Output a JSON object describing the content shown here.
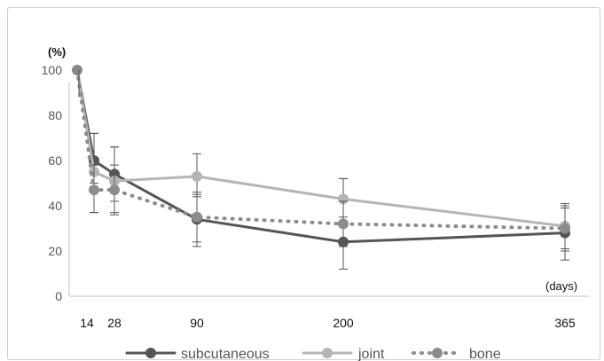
{
  "chart_data": {
    "type": "line",
    "title": "",
    "y_unit_label": "(%)",
    "x_unit_label": "(days)",
    "x": [
      14,
      28,
      90,
      200,
      365
    ],
    "x_tick_labels": [
      "14",
      "28",
      "90",
      "200",
      "365"
    ],
    "y_ticks": [
      0,
      20,
      40,
      60,
      80,
      100
    ],
    "ylim": [
      0,
      100
    ],
    "grid": false,
    "legend_position": "bottom",
    "start_point": {
      "x": 0,
      "y": 100
    },
    "series": [
      {
        "name": "subcutaneous",
        "color": "#555555",
        "style": "solid",
        "values": [
          60,
          54,
          34,
          24,
          28
        ],
        "err_high": [
          72,
          66,
          46,
          52,
          40
        ],
        "err_low": [
          50,
          42,
          22,
          12,
          16
        ]
      },
      {
        "name": "joint",
        "color": "#b5b5b5",
        "style": "solid",
        "values": [
          55,
          51,
          53,
          43,
          31
        ],
        "err_high": [
          72,
          66,
          63,
          52,
          41
        ],
        "err_low": [
          37,
          36,
          44,
          35,
          21
        ]
      },
      {
        "name": "bone",
        "color": "#8c8c8c",
        "style": "dotted",
        "values": [
          47,
          47,
          35,
          32,
          30
        ],
        "err_high": [
          58,
          58,
          45,
          42,
          39
        ],
        "err_low": [
          37,
          37,
          24,
          22,
          20
        ]
      }
    ]
  }
}
